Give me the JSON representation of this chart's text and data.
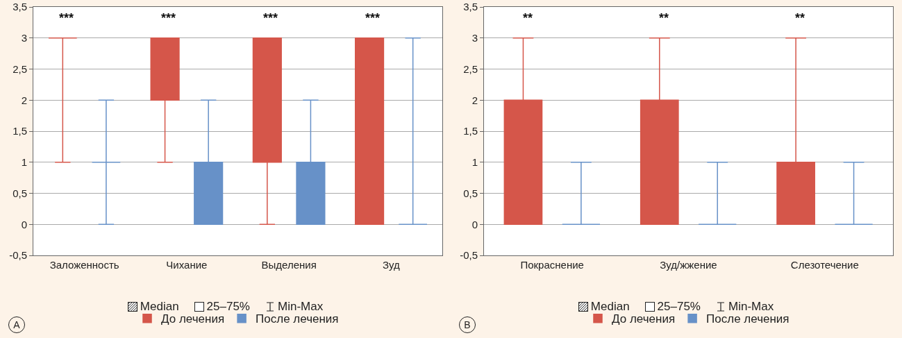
{
  "chart_data": [
    {
      "type": "box",
      "categories": [
        "Заложенность",
        "Чихание",
        "Выделения",
        "Зуд"
      ],
      "series": [
        {
          "name": "До лечения",
          "color": "#d5564a",
          "boxes": [
            {
              "low": 1,
              "q1": 3,
              "median": 3,
              "q3": 3,
              "high": 3
            },
            {
              "low": 1,
              "q1": 2,
              "median": 3,
              "q3": 3,
              "high": 3
            },
            {
              "low": 0,
              "q1": 1,
              "median": 2,
              "q3": 3,
              "high": 3
            },
            {
              "low": 0,
              "q1": 0,
              "median": 1,
              "q3": 3,
              "high": 3
            }
          ]
        },
        {
          "name": "После лечения",
          "color": "#6791c8",
          "boxes": [
            {
              "low": 0,
              "q1": 1,
              "median": 1,
              "q3": 1,
              "high": 2
            },
            {
              "low": 0,
              "q1": 0,
              "median": 0,
              "q3": 1,
              "high": 2
            },
            {
              "low": 0,
              "q1": 0,
              "median": 0,
              "q3": 1,
              "high": 2
            },
            {
              "low": 0,
              "q1": 0,
              "median": 0,
              "q3": 0,
              "high": 3
            }
          ]
        }
      ],
      "ylim": [
        -0.5,
        3.5
      ],
      "yticks": [
        {
          "value": -0.5,
          "label": "-0,5"
        },
        0,
        {
          "value": 0.5,
          "label": "0,5"
        },
        1,
        {
          "value": 1.5,
          "label": "1,5"
        },
        2,
        {
          "value": 2.5,
          "label": "2,5"
        },
        3,
        {
          "value": 3.5,
          "label": "3,5"
        }
      ],
      "grid": "y",
      "legend": "bottom",
      "annotations": [
        "***",
        "***",
        "***",
        "***",
        "Median",
        "25–75%",
        "Min-Max",
        "A"
      ]
    },
    {
      "type": "box",
      "categories": [
        "Покраснение",
        "Зуд/жжение",
        "Слезотечение"
      ],
      "series": [
        {
          "name": "До лечения",
          "color": "#d5564a",
          "boxes": [
            {
              "low": 0,
              "q1": 0,
              "median": 0,
              "q3": 2,
              "high": 3
            },
            {
              "low": 0,
              "q1": 0,
              "median": 0,
              "q3": 2,
              "high": 3
            },
            {
              "low": 0,
              "q1": 0,
              "median": 0,
              "q3": 1,
              "high": 3
            }
          ]
        },
        {
          "name": "После лечения",
          "color": "#6791c8",
          "boxes": [
            {
              "low": 0,
              "q1": 0,
              "median": 0,
              "q3": 0,
              "high": 1
            },
            {
              "low": 0,
              "q1": 0,
              "median": 0,
              "q3": 0,
              "high": 1
            },
            {
              "low": 0,
              "q1": 0,
              "median": 0,
              "q3": 0,
              "high": 1
            }
          ]
        }
      ],
      "ylim": [
        -0.5,
        3.5
      ],
      "yticks": [
        {
          "value": -0.5,
          "label": "-0,5"
        },
        0,
        {
          "value": 0.5,
          "label": "0,5"
        },
        1,
        {
          "value": 1.5,
          "label": "1,5"
        },
        2,
        {
          "value": 2.5,
          "label": "2,5"
        },
        3,
        {
          "value": 3.5,
          "label": "3,5"
        }
      ],
      "grid": "y",
      "legend": "bottom",
      "annotations": [
        "**",
        "**",
        "**",
        "Median",
        "25–75%",
        "Min-Max",
        "B"
      ]
    }
  ]
}
